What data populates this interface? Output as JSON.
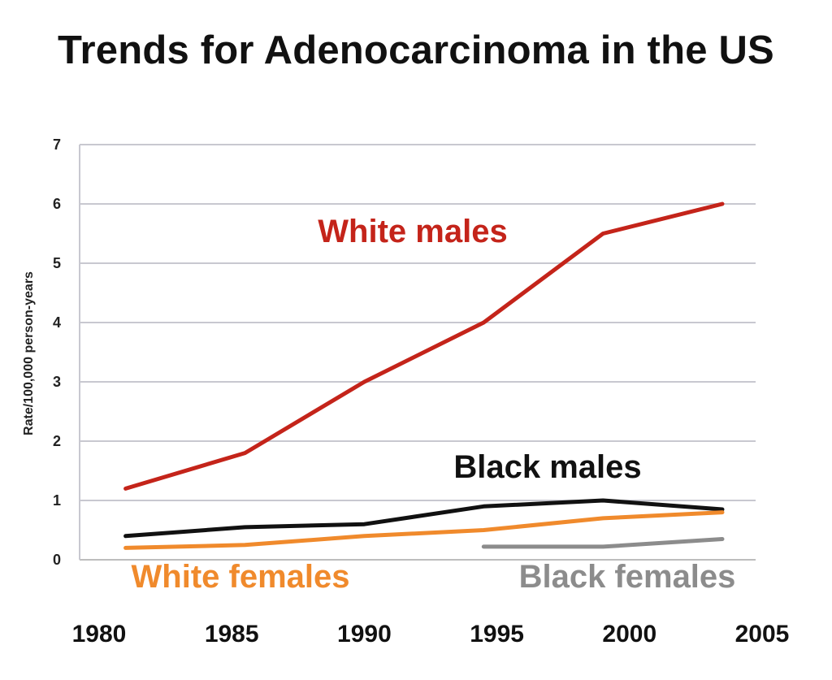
{
  "chart_data": {
    "type": "line",
    "title": "Trends for Adenocarcinoma in the US",
    "xlabel": "",
    "ylabel": "Rate/100,000 person-years",
    "xlim": [
      1980,
      2005
    ],
    "ylim": [
      0,
      7
    ],
    "x_ticks": [
      "1980",
      "1985",
      "1990",
      "1995",
      "2000",
      "2005"
    ],
    "y_ticks": [
      "0",
      "1",
      "2",
      "3",
      "4",
      "5",
      "6",
      "7"
    ],
    "grid": true,
    "series": [
      {
        "name": "White males",
        "color": "#c4241a",
        "x": [
          1981,
          1985.5,
          1990,
          1994.5,
          1999,
          2003.5
        ],
        "values": [
          1.2,
          1.8,
          3.0,
          4.0,
          5.5,
          6.0
        ]
      },
      {
        "name": "Black males",
        "color": "#111111",
        "x": [
          1981,
          1985.5,
          1990,
          1994.5,
          1999,
          2003.5
        ],
        "values": [
          0.4,
          0.55,
          0.6,
          0.9,
          1.0,
          0.85
        ]
      },
      {
        "name": "White females",
        "color": "#f08a2c",
        "x": [
          1981,
          1985.5,
          1990,
          1994.5,
          1999,
          2003.5
        ],
        "values": [
          0.2,
          0.25,
          0.4,
          0.5,
          0.7,
          0.8
        ]
      },
      {
        "name": "Black females",
        "color": "#8c8c8c",
        "x": [
          1994.5,
          1999,
          2003.5
        ],
        "values": [
          0.22,
          0.22,
          0.35
        ]
      }
    ]
  }
}
